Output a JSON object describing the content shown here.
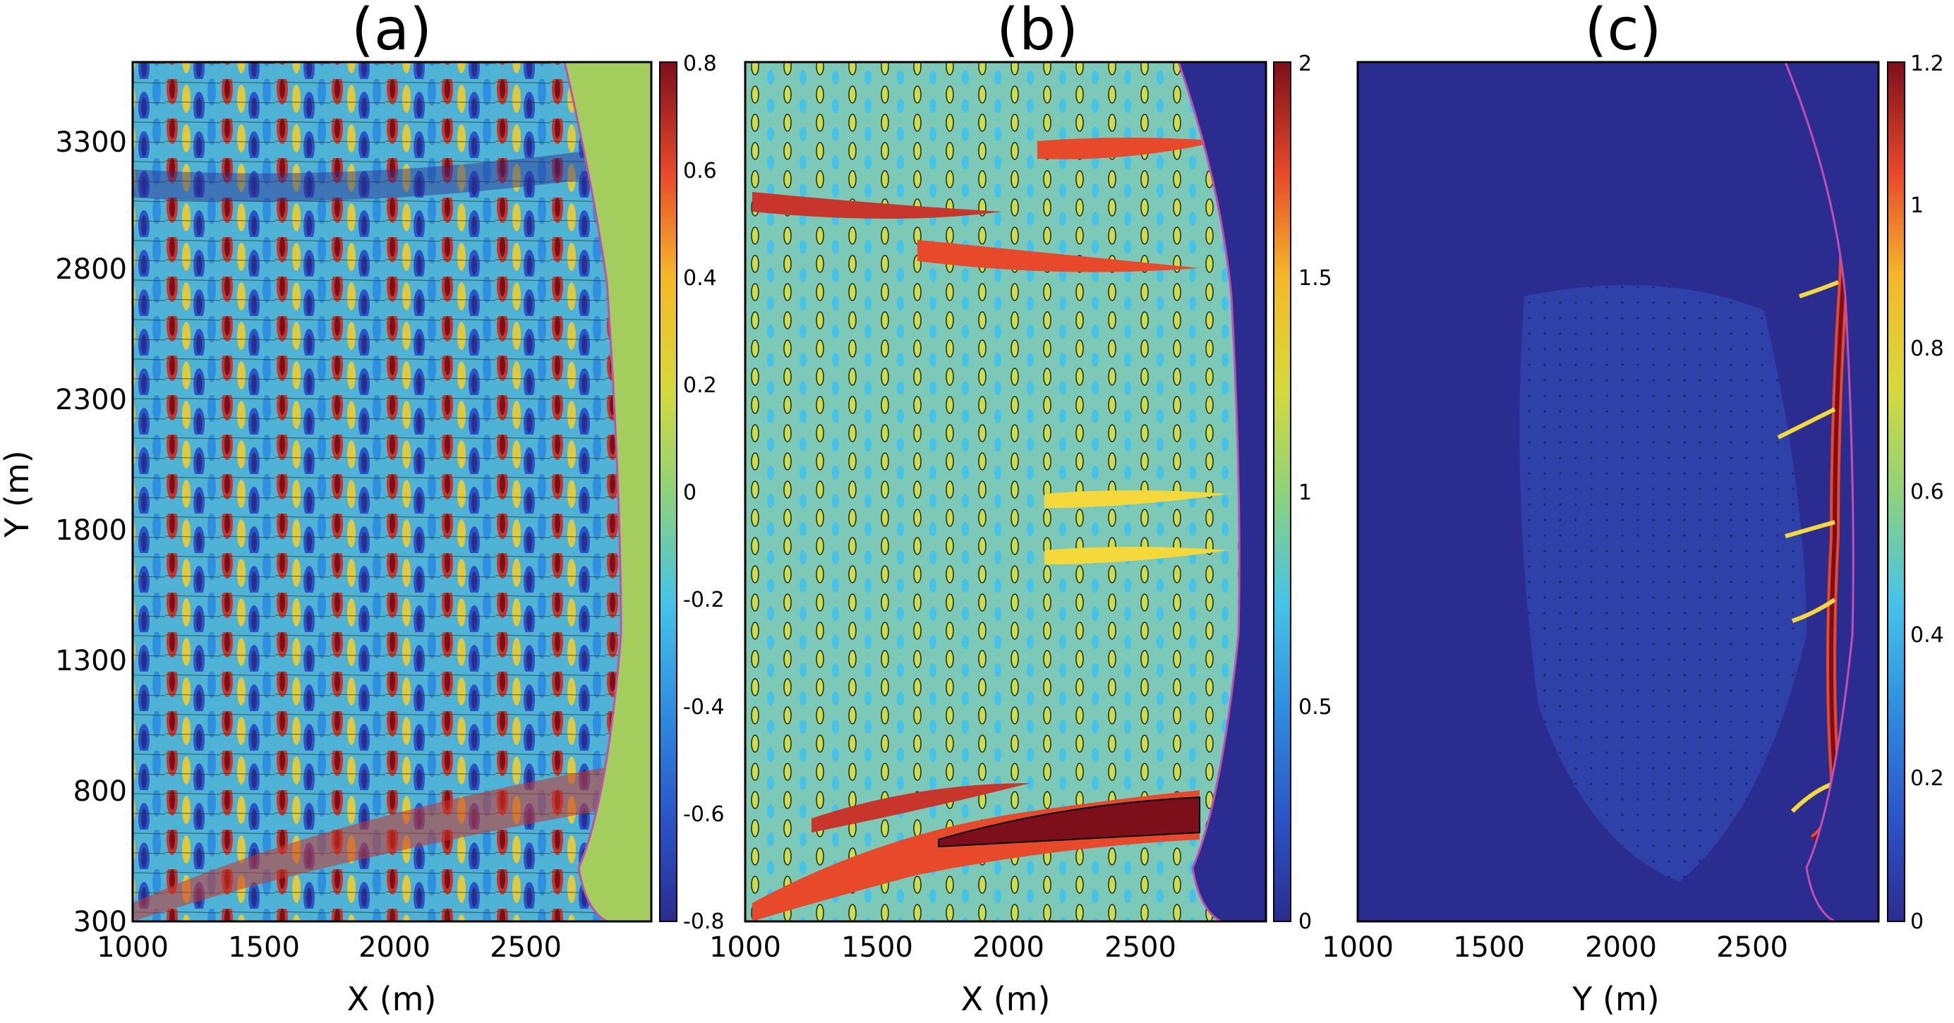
{
  "chart_data": [
    {
      "type": "heatmap",
      "title": "(a)",
      "xlabel": "X (m)",
      "ylabel": "Y (m)",
      "x_ticks": [
        1000,
        1500,
        2000,
        2500
      ],
      "y_ticks": [
        300,
        800,
        1300,
        1800,
        2300,
        2800,
        3300
      ],
      "xlim": [
        1000,
        2980
      ],
      "ylim": [
        300,
        3600
      ],
      "colorbar": {
        "ticks": [
          -0.8,
          -0.6,
          -0.4,
          -0.2,
          0,
          0.2,
          0.4,
          0.6,
          0.8
        ],
        "tick_labels": [
          "-0.8",
          "-0.6",
          "-0.4",
          "-0.2",
          "0",
          "0.2",
          "0.4",
          "0.6",
          "0.8"
        ],
        "range": [
          -0.8,
          0.8
        ]
      },
      "colormap": "parula-jet"
    },
    {
      "type": "heatmap",
      "title": "(b)",
      "xlabel": "X (m)",
      "ylabel": "",
      "x_ticks": [
        1000,
        1500,
        2000,
        2500
      ],
      "xlim": [
        1000,
        2980
      ],
      "ylim": [
        300,
        3600
      ],
      "colorbar": {
        "ticks": [
          0,
          0.5,
          1,
          1.5,
          2
        ],
        "tick_labels": [
          "0",
          "0.5",
          "1",
          "1.5",
          "2"
        ],
        "range": [
          0,
          2
        ]
      },
      "colormap": "parula-jet"
    },
    {
      "type": "heatmap",
      "title": "(c)",
      "xlabel": "Y (m)",
      "ylabel": "",
      "x_ticks": [
        1000,
        1500,
        2000,
        2500
      ],
      "xlim": [
        1000,
        2980
      ],
      "ylim": [
        300,
        3600
      ],
      "colorbar": {
        "ticks": [
          0,
          0.2,
          0.4,
          0.6,
          0.8,
          1,
          1.2
        ],
        "tick_labels": [
          "0",
          "0.2",
          "0.4",
          "0.6",
          "0.8",
          "1",
          "1.2"
        ],
        "range": [
          0,
          1.2
        ]
      },
      "colormap": "parula-jet"
    }
  ]
}
